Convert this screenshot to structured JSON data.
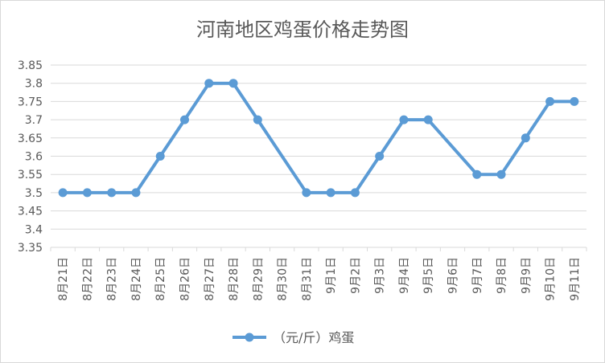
{
  "chart_data": {
    "type": "line",
    "title": "河南地区鸡蛋价格走势图",
    "xlabel": "",
    "ylabel": "",
    "categories": [
      "8月21日",
      "8月22日",
      "8月23日",
      "8月24日",
      "8月25日",
      "8月26日",
      "8月27日",
      "8月28日",
      "8月29日",
      "8月30日",
      "8月31日",
      "9月1日",
      "9月2日",
      "9月3日",
      "9月4日",
      "9月5日",
      "9月6日",
      "9月7日",
      "9月8日",
      "9月9日",
      "9月10日",
      "9月11日"
    ],
    "series": [
      {
        "name": "（元/斤）鸡蛋",
        "values": [
          3.5,
          3.5,
          3.5,
          3.5,
          3.6,
          3.7,
          3.8,
          3.8,
          3.7,
          null,
          3.5,
          3.5,
          3.5,
          3.6,
          3.7,
          3.7,
          null,
          3.55,
          3.55,
          3.65,
          3.75,
          3.75
        ],
        "color": "#5b9bd5"
      }
    ],
    "ylim": [
      3.35,
      3.85
    ],
    "yticks": [
      "3.85",
      "3.8",
      "3.75",
      "3.7",
      "3.65",
      "3.6",
      "3.55",
      "3.5",
      "3.45",
      "3.4",
      "3.35"
    ],
    "grid": true,
    "legend": "bottom"
  }
}
